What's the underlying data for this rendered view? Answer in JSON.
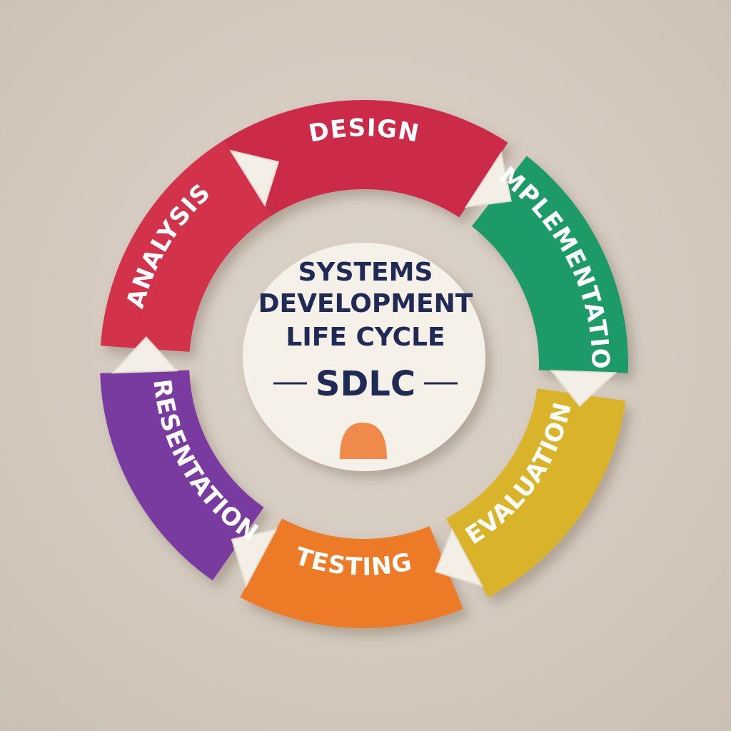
{
  "diagram": {
    "center": {
      "title_lines": [
        "SYSTEMS",
        "DEVELOPMENT",
        "LIFE CYCLE"
      ],
      "abbreviation": "SDLC"
    },
    "stages": [
      {
        "id": "design",
        "label": "DESIGN",
        "color": "#cc2a4a"
      },
      {
        "id": "implementation",
        "label": "IMPLEMENTATION",
        "color": "#1e9a68"
      },
      {
        "id": "evaluation",
        "label": "EVALUATION",
        "color": "#d9b42c"
      },
      {
        "id": "testing",
        "label": "TESTING",
        "color": "#ec7a25"
      },
      {
        "id": "presentation",
        "label": "PRESENTATION",
        "color": "#7a3aa0"
      },
      {
        "id": "analysis",
        "label": "ANALYSIS",
        "color": "#d3304c"
      }
    ],
    "colors": {
      "background": "#d6ccc1",
      "center_fill": "#f5f1e9",
      "center_text": "#1f2a55",
      "arrow_fill": "#f4efe6",
      "accent_shape": "#ef8a4a"
    }
  }
}
